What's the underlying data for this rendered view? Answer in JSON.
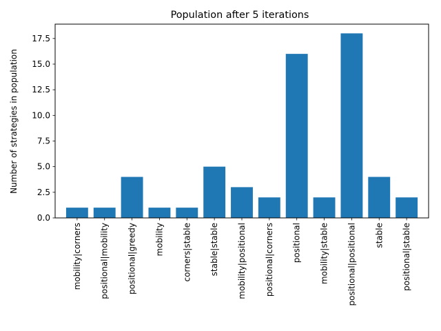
{
  "chart_data": {
    "type": "bar",
    "title": "Population after 5 iterations",
    "xlabel": "",
    "ylabel": "Number of strategies in population",
    "categories": [
      "mobility|corners",
      "positional|mobility",
      "positional|greedy",
      "mobility",
      "corners|stable",
      "stable|stable",
      "mobility|positional",
      "positional|corners",
      "positional",
      "mobility|stable",
      "positional|positional",
      "stable",
      "positional|stable"
    ],
    "values": [
      1,
      1,
      4,
      1,
      1,
      5,
      3,
      2,
      16,
      2,
      18,
      4,
      2
    ],
    "ylim": [
      0,
      18.9
    ],
    "yticks": [
      "0.0",
      "2.5",
      "5.0",
      "7.5",
      "10.0",
      "12.5",
      "15.0",
      "17.5"
    ],
    "bar_color": "#1f77b4",
    "grid": false,
    "legend": "none"
  }
}
